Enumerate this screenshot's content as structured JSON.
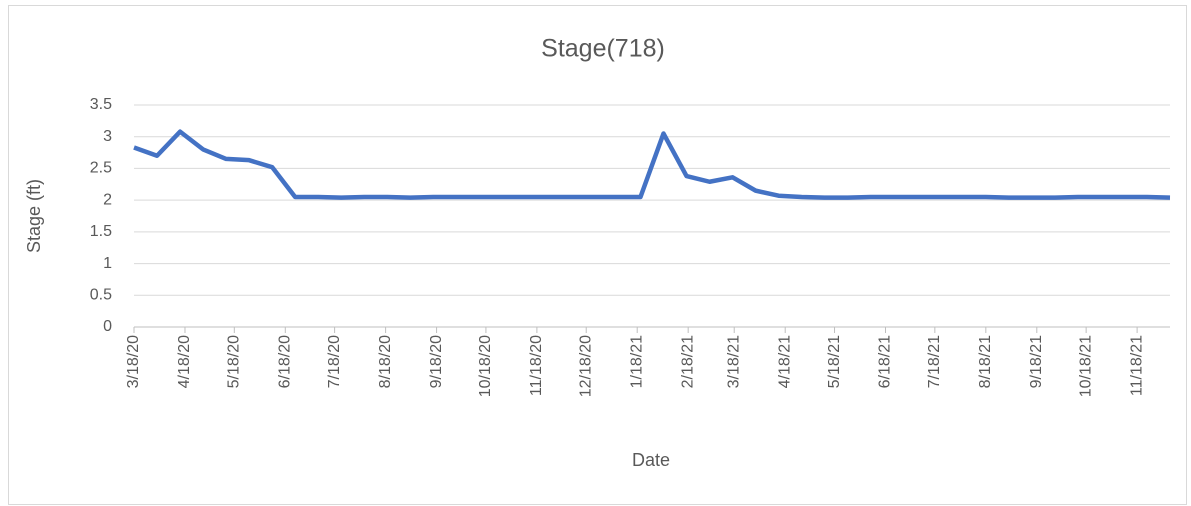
{
  "chart_data": {
    "type": "line",
    "title": "Stage(718)",
    "x_label": "Date",
    "y_label": "Stage (ft)",
    "x": [
      "3/18/20",
      "4/1/20",
      "4/15/20",
      "4/29/20",
      "5/13/20",
      "5/27/20",
      "6/10/20",
      "6/24/20",
      "7/8/20",
      "7/22/20",
      "8/5/20",
      "8/19/20",
      "9/2/20",
      "9/16/20",
      "9/30/20",
      "10/14/20",
      "10/28/20",
      "11/11/20",
      "11/25/20",
      "12/9/20",
      "12/23/20",
      "1/6/21",
      "1/20/21",
      "2/3/21",
      "2/17/21",
      "3/3/21",
      "3/17/21",
      "3/31/21",
      "4/14/21",
      "4/28/21",
      "5/12/21",
      "5/26/21",
      "6/9/21",
      "6/23/21",
      "7/7/21",
      "7/21/21",
      "8/4/21",
      "8/18/21",
      "9/1/21",
      "9/15/21",
      "9/29/21",
      "10/13/21",
      "10/27/21",
      "11/10/21",
      "11/24/21",
      "12/8/21"
    ],
    "series": [
      {
        "name": "Stage",
        "color": "#4472c4",
        "values": [
          2.83,
          2.7,
          3.08,
          2.8,
          2.65,
          2.63,
          2.52,
          2.05,
          2.05,
          2.04,
          2.05,
          2.05,
          2.04,
          2.05,
          2.05,
          2.05,
          2.05,
          2.05,
          2.05,
          2.05,
          2.05,
          2.05,
          2.05,
          3.05,
          2.38,
          2.29,
          2.36,
          2.15,
          2.07,
          2.05,
          2.04,
          2.04,
          2.05,
          2.05,
          2.05,
          2.05,
          2.05,
          2.05,
          2.04,
          2.04,
          2.04,
          2.05,
          2.05,
          2.05,
          2.05,
          2.04
        ]
      }
    ],
    "xticks": [
      "3/18/20",
      "4/18/20",
      "5/18/20",
      "6/18/20",
      "7/18/20",
      "8/18/20",
      "9/18/20",
      "10/18/20",
      "11/18/20",
      "12/18/20",
      "1/18/21",
      "2/18/21",
      "3/18/21",
      "4/18/21",
      "5/18/21",
      "6/18/21",
      "7/18/21",
      "8/18/21",
      "9/18/21",
      "10/18/21",
      "11/18/21"
    ],
    "ylim": [
      0,
      3.5
    ],
    "yticks": [
      0,
      0.5,
      1,
      1.5,
      2,
      2.5,
      3,
      3.5
    ],
    "grid": true
  }
}
